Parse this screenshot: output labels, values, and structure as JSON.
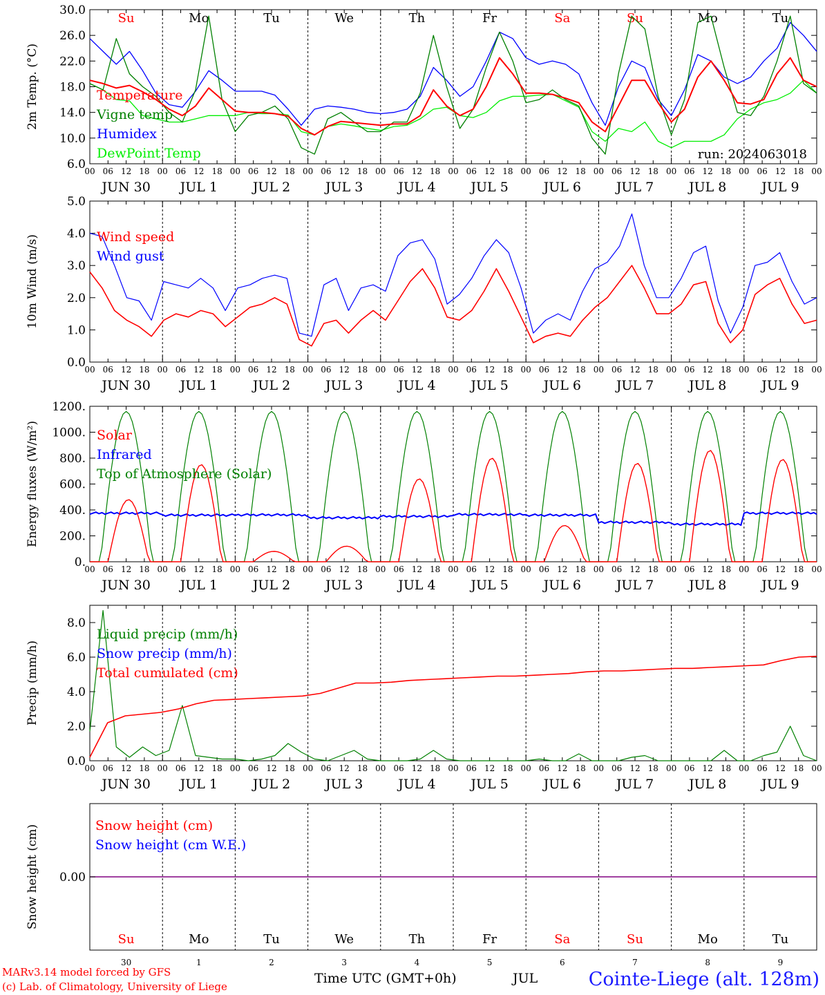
{
  "days": {
    "dow": [
      "Su",
      "Mo",
      "Tu",
      "We",
      "Th",
      "Fr",
      "Sa",
      "Su",
      "Mo",
      "Tu"
    ],
    "weekend_flags": [
      true,
      false,
      false,
      false,
      false,
      false,
      true,
      true,
      false,
      false
    ],
    "dates": [
      "JUN 30",
      "JUL  1",
      "JUL  2",
      "JUL  3",
      "JUL  4",
      "JUL  5",
      "JUL  6",
      "JUL  7",
      "JUL  8",
      "JUL  9"
    ],
    "day_numbers": [
      "30",
      "1",
      "2",
      "3",
      "4",
      "5",
      "6",
      "7",
      "8",
      "9"
    ],
    "hour_ticks": [
      "00",
      "06",
      "12",
      "18"
    ],
    "end_tick": "00"
  },
  "colors": {
    "red": "#ff0000",
    "green": "#008000",
    "blue": "#0000ff",
    "lightgreen": "#00ee00",
    "purple": "#800080",
    "axis": "#000000"
  },
  "footer": {
    "line1": "MARv3.14 model forced by GFS",
    "line2": "(c) Lab. of Climatology, University of Liege",
    "time_label": "Time UTC (GMT+0h)",
    "month_label": "JUL",
    "station": "Cointe-Liege (alt. 128m)"
  },
  "chart_data": [
    {
      "type": "line",
      "ylabel": "2m Temp. (°C)",
      "ylim": [
        6,
        30
      ],
      "yticks": [
        "6.0",
        "10.0",
        "14.0",
        "18.0",
        "22.0",
        "26.0",
        "30.0"
      ],
      "yvals": [
        6,
        10,
        14,
        18,
        22,
        26,
        30
      ],
      "annotation": "run: 2024063018",
      "x_unit": "hours since 2024-06-30 00 UTC (3-hourly)",
      "series": [
        {
          "name": "Temperature",
          "color": "#ff0000",
          "values": [
            19,
            18.5,
            17.8,
            18.2,
            17.2,
            16,
            14.5,
            13.5,
            15,
            17.8,
            16,
            14.2,
            14,
            14,
            13.8,
            13.4,
            11.5,
            10.5,
            11.8,
            12.6,
            12.4,
            12.2,
            12,
            12.2,
            12.2,
            13.5,
            17.5,
            15,
            13.5,
            14.5,
            18,
            22.5,
            20,
            17,
            17,
            16.8,
            16.2,
            15.5,
            12.5,
            11,
            15,
            19,
            19,
            15.5,
            12.5,
            14.5,
            19.5,
            22,
            19,
            15.5,
            15.3,
            16,
            20,
            22.5,
            19,
            18
          ]
        },
        {
          "name": "Vigne temp",
          "color": "#008000",
          "values": [
            18.5,
            17.5,
            25.5,
            20,
            18,
            16.5,
            14,
            12.5,
            17.5,
            29,
            16,
            11,
            13.5,
            14,
            15,
            13,
            8.5,
            7.5,
            13,
            14,
            12.5,
            11,
            11,
            12.5,
            12.5,
            17,
            26,
            18,
            11.5,
            14.5,
            21,
            26.5,
            22,
            15.5,
            16,
            17.5,
            16,
            15,
            10,
            7.5,
            20,
            29,
            27,
            16.5,
            10.5,
            16,
            28,
            29,
            21,
            14,
            13.5,
            16.5,
            22,
            29,
            18.5,
            17
          ]
        },
        {
          "name": "Humidex",
          "color": "#0000ff",
          "values": [
            25.5,
            23.5,
            21.5,
            23.5,
            20.5,
            17,
            15.2,
            14.8,
            17.3,
            20.5,
            19,
            17.3,
            17.3,
            17.3,
            16.7,
            14.5,
            12,
            14.5,
            15,
            14.8,
            14.5,
            14,
            13.8,
            14,
            14.5,
            16.5,
            21,
            19,
            16.5,
            18,
            22,
            26.5,
            25.5,
            22.5,
            21.5,
            22,
            21.5,
            20,
            15.5,
            12,
            18,
            22,
            21,
            16,
            13.5,
            17.5,
            23,
            22,
            19.5,
            18.5,
            19.5,
            22,
            24,
            28,
            26,
            23.5
          ]
        },
        {
          "name": "DewPoint Temp",
          "color": "#00ee00",
          "values": [
            18.5,
            17.5,
            16,
            15.8,
            13.5,
            13,
            12.5,
            12.5,
            13,
            13.5,
            13.5,
            13.5,
            14,
            13.8,
            13.8,
            13.6,
            11,
            10.5,
            11.8,
            12.2,
            11.9,
            11.5,
            11.2,
            11.8,
            12,
            13,
            14.5,
            14.8,
            13.5,
            13.2,
            14,
            15.8,
            16.5,
            16.5,
            16.7,
            16.8,
            15.8,
            14.8,
            11,
            9.5,
            11.5,
            11,
            12.5,
            9.5,
            8.5,
            9.5,
            9.5,
            9.5,
            10.5,
            13,
            14.5,
            15.5,
            16,
            17,
            19,
            17
          ]
        }
      ]
    },
    {
      "type": "line",
      "ylabel": "10m Wind (m/s)",
      "ylim": [
        0,
        5
      ],
      "yticks": [
        "0.0",
        "1.0",
        "2.0",
        "3.0",
        "4.0",
        "5.0"
      ],
      "yvals": [
        0,
        1,
        2,
        3,
        4,
        5
      ],
      "series": [
        {
          "name": "Wind speed",
          "color": "#ff0000",
          "values": [
            2.8,
            2.3,
            1.6,
            1.3,
            1.1,
            0.8,
            1.3,
            1.5,
            1.4,
            1.6,
            1.5,
            1.1,
            1.4,
            1.7,
            1.8,
            2.0,
            1.8,
            0.7,
            0.5,
            1.2,
            1.3,
            0.9,
            1.3,
            1.6,
            1.3,
            1.9,
            2.5,
            2.9,
            2.3,
            1.4,
            1.3,
            1.6,
            2.2,
            2.9,
            2.2,
            1.4,
            0.6,
            0.8,
            0.9,
            0.8,
            1.3,
            1.7,
            2.0,
            2.5,
            3.0,
            2.3,
            1.5,
            1.5,
            1.8,
            2.4,
            2.5,
            1.2,
            0.6,
            1.0,
            2.1,
            2.4,
            2.6,
            1.8,
            1.2,
            1.3
          ]
        },
        {
          "name": "Wind gust",
          "color": "#0000ff",
          "values": [
            4.0,
            3.9,
            3.0,
            2.0,
            1.9,
            1.3,
            2.5,
            2.4,
            2.3,
            2.6,
            2.3,
            1.6,
            2.3,
            2.4,
            2.6,
            2.7,
            2.6,
            0.9,
            0.8,
            2.4,
            2.6,
            1.6,
            2.3,
            2.4,
            2.2,
            3.3,
            3.7,
            3.8,
            3.2,
            1.8,
            2.1,
            2.6,
            3.3,
            3.8,
            3.4,
            2.3,
            0.9,
            1.3,
            1.5,
            1.3,
            2.2,
            2.9,
            3.1,
            3.6,
            4.6,
            3.0,
            2.0,
            2.0,
            2.6,
            3.4,
            3.6,
            1.9,
            0.9,
            1.7,
            3.0,
            3.1,
            3.4,
            2.5,
            1.8,
            2.0
          ]
        }
      ]
    },
    {
      "type": "line",
      "ylabel": "Energy fluxes (W/m²)",
      "ylim": [
        0,
        1200
      ],
      "yticks": [
        "0.",
        "200.",
        "400.",
        "600.",
        "800.",
        "1000.",
        "1200."
      ],
      "yvals": [
        0,
        200,
        400,
        600,
        800,
        1000,
        1200
      ],
      "series": [
        {
          "name": "Solar",
          "color": "#ff0000",
          "daily_peaks": [
            480,
            750,
            80,
            120,
            640,
            800,
            280,
            760,
            860,
            790
          ]
        },
        {
          "name": "Infrared",
          "color": "#0000ff",
          "daily_levels": [
            375,
            360,
            362,
            340,
            350,
            365,
            360,
            305,
            290,
            375
          ]
        },
        {
          "name": "Top of Atmosphere (Solar)",
          "color": "#008000",
          "daily_peaks": [
            1160,
            1160,
            1160,
            1160,
            1160,
            1160,
            1160,
            1160,
            1160,
            1160
          ]
        }
      ]
    },
    {
      "type": "line",
      "ylabel": "Precip (mm/h)",
      "ylim": [
        0,
        9
      ],
      "yticks": [
        "0.0",
        "2.0",
        "4.0",
        "6.0",
        "8.0"
      ],
      "yvals": [
        0,
        2,
        4,
        6,
        8
      ],
      "series": [
        {
          "name": "Liquid precip (mm/h)",
          "color": "#008000",
          "values": [
            1.7,
            8.7,
            0.8,
            0.2,
            0.8,
            0.3,
            0.6,
            3.2,
            0.3,
            0.2,
            0.1,
            0.1,
            0.0,
            0.1,
            0.3,
            1.0,
            0.5,
            0.1,
            0.0,
            0.3,
            0.6,
            0.1,
            0.0,
            0.0,
            0.0,
            0.1,
            0.6,
            0.1,
            0.0,
            0.0,
            0.0,
            0.0,
            0.0,
            0.0,
            0.1,
            0.0,
            0.0,
            0.4,
            0.0,
            0.0,
            0.0,
            0.2,
            0.3,
            0.0,
            0.0,
            0.0,
            0.0,
            0.0,
            0.6,
            0.0,
            0.0,
            0.3,
            0.5,
            2.0,
            0.3,
            0.0
          ]
        },
        {
          "name": "Snow precip (mm/h)",
          "color": "#0000ff",
          "values": []
        },
        {
          "name": "Total cumulated (cm)",
          "color": "#ff0000",
          "values": [
            0.2,
            2.2,
            2.6,
            2.7,
            2.8,
            3.0,
            3.3,
            3.5,
            3.55,
            3.6,
            3.65,
            3.7,
            3.75,
            3.9,
            4.2,
            4.5,
            4.5,
            4.55,
            4.65,
            4.7,
            4.75,
            4.8,
            4.85,
            4.9,
            4.9,
            4.95,
            5.0,
            5.05,
            5.15,
            5.2,
            5.2,
            5.25,
            5.3,
            5.35,
            5.35,
            5.4,
            5.45,
            5.5,
            5.55,
            5.8,
            6.0,
            6.05
          ]
        }
      ]
    },
    {
      "type": "line",
      "ylabel": "Snow height (cm)",
      "yticks": [
        "0.00"
      ],
      "series": [
        {
          "name": "Snow height (cm)",
          "color": "#ff0000",
          "values": [
            0.0
          ]
        },
        {
          "name": "Snow height (cm W.E.)",
          "color": "#0000ff",
          "values": [
            0.0
          ]
        }
      ]
    }
  ]
}
